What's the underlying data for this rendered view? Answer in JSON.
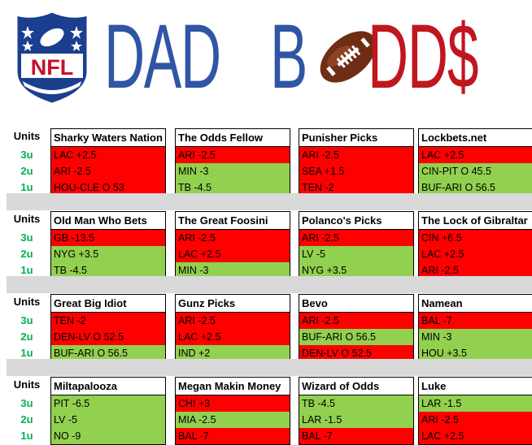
{
  "header": {
    "title_dad": "DAD",
    "title_b": "B",
    "title_dds": "DD$",
    "logo_text": "NFL",
    "colors": {
      "blue": "#2f55a4",
      "red": "#c0161e"
    }
  },
  "units_header": "Units",
  "unit_labels": [
    "3u",
    "2u",
    "1u"
  ],
  "colors": {
    "loss": "#ff0000",
    "win": "#92d050",
    "band": "#d9d9d9",
    "unit_label": "#00b050"
  },
  "groups": [
    {
      "cards": [
        {
          "name": "Sharky Waters Nation",
          "picks": [
            {
              "text": "LAC +2.5",
              "result": "red"
            },
            {
              "text": "ARI -2.5",
              "result": "red"
            },
            {
              "text": "HOU-CLE O 53",
              "result": "red"
            }
          ]
        },
        {
          "name": "The Odds Fellow",
          "picks": [
            {
              "text": "ARI -2.5",
              "result": "red"
            },
            {
              "text": "MIN -3",
              "result": "green"
            },
            {
              "text": "TB -4.5",
              "result": "green"
            }
          ]
        },
        {
          "name": "Punisher Picks",
          "picks": [
            {
              "text": "ARI -2.5",
              "result": "red"
            },
            {
              "text": "SEA +1.5",
              "result": "red"
            },
            {
              "text": "TEN -2",
              "result": "red"
            }
          ]
        },
        {
          "name": "Lockbets.net",
          "picks": [
            {
              "text": "LAC +2.5",
              "result": "red"
            },
            {
              "text": "CIN-PIT O 45.5",
              "result": "green"
            },
            {
              "text": "BUF-ARI O 56.5",
              "result": "green"
            }
          ]
        }
      ]
    },
    {
      "cards": [
        {
          "name": "Old Man Who Bets",
          "picks": [
            {
              "text": "GB -13.5",
              "result": "red"
            },
            {
              "text": "NYG +3.5",
              "result": "green"
            },
            {
              "text": "TB -4.5",
              "result": "green"
            }
          ]
        },
        {
          "name": "The Great Foosini",
          "picks": [
            {
              "text": "ARI -2.5",
              "result": "red"
            },
            {
              "text": "LAC +2.5",
              "result": "red"
            },
            {
              "text": "MIN -3",
              "result": "green"
            }
          ]
        },
        {
          "name": "Polanco's Picks",
          "picks": [
            {
              "text": "ARI -2.5",
              "result": "red"
            },
            {
              "text": "LV -5",
              "result": "green"
            },
            {
              "text": "NYG +3.5",
              "result": "green"
            }
          ]
        },
        {
          "name": "The Lock of Gibraltar",
          "picks": [
            {
              "text": "CIN +6.5",
              "result": "red"
            },
            {
              "text": "LAC +2.5",
              "result": "red"
            },
            {
              "text": "ARI -2.5",
              "result": "red"
            }
          ]
        }
      ]
    },
    {
      "cards": [
        {
          "name": "Great Big Idiot",
          "picks": [
            {
              "text": "TEN -2",
              "result": "red"
            },
            {
              "text": "DEN-LV O 52.5",
              "result": "red"
            },
            {
              "text": "BUF-ARI O 56.5",
              "result": "green"
            }
          ]
        },
        {
          "name": "Gunz Picks",
          "picks": [
            {
              "text": "ARI -2.5",
              "result": "red"
            },
            {
              "text": "LAC +2.5",
              "result": "red"
            },
            {
              "text": "IND +2",
              "result": "green"
            }
          ]
        },
        {
          "name": "Bevo",
          "picks": [
            {
              "text": "ARI -2.5",
              "result": "red"
            },
            {
              "text": "BUF-ARI O 56.5",
              "result": "green"
            },
            {
              "text": "DEN-LV O 52.5",
              "result": "red"
            }
          ]
        },
        {
          "name": "Namean",
          "picks": [
            {
              "text": "BAL -7",
              "result": "red"
            },
            {
              "text": "MIN -3",
              "result": "green"
            },
            {
              "text": "HOU +3.5",
              "result": "green"
            }
          ]
        }
      ]
    },
    {
      "cards": [
        {
          "name": "Miltapalooza",
          "picks": [
            {
              "text": "PIT -6.5",
              "result": "green"
            },
            {
              "text": "LV -5",
              "result": "green"
            },
            {
              "text": "NO -9",
              "result": "green"
            }
          ]
        },
        {
          "name": "Megan Makin Money",
          "picks": [
            {
              "text": "CHI +3",
              "result": "red"
            },
            {
              "text": "MIA -2.5",
              "result": "green"
            },
            {
              "text": "BAL -7",
              "result": "red"
            }
          ]
        },
        {
          "name": "Wizard of Odds",
          "picks": [
            {
              "text": "TB -4.5",
              "result": "green"
            },
            {
              "text": "LAR -1.5",
              "result": "green"
            },
            {
              "text": "BAL -7",
              "result": "red"
            }
          ]
        },
        {
          "name": "Luke",
          "picks": [
            {
              "text": "LAR -1.5",
              "result": "green"
            },
            {
              "text": "ARI -2.5",
              "result": "red"
            },
            {
              "text": "LAC +2.5",
              "result": "red"
            }
          ]
        }
      ]
    }
  ]
}
